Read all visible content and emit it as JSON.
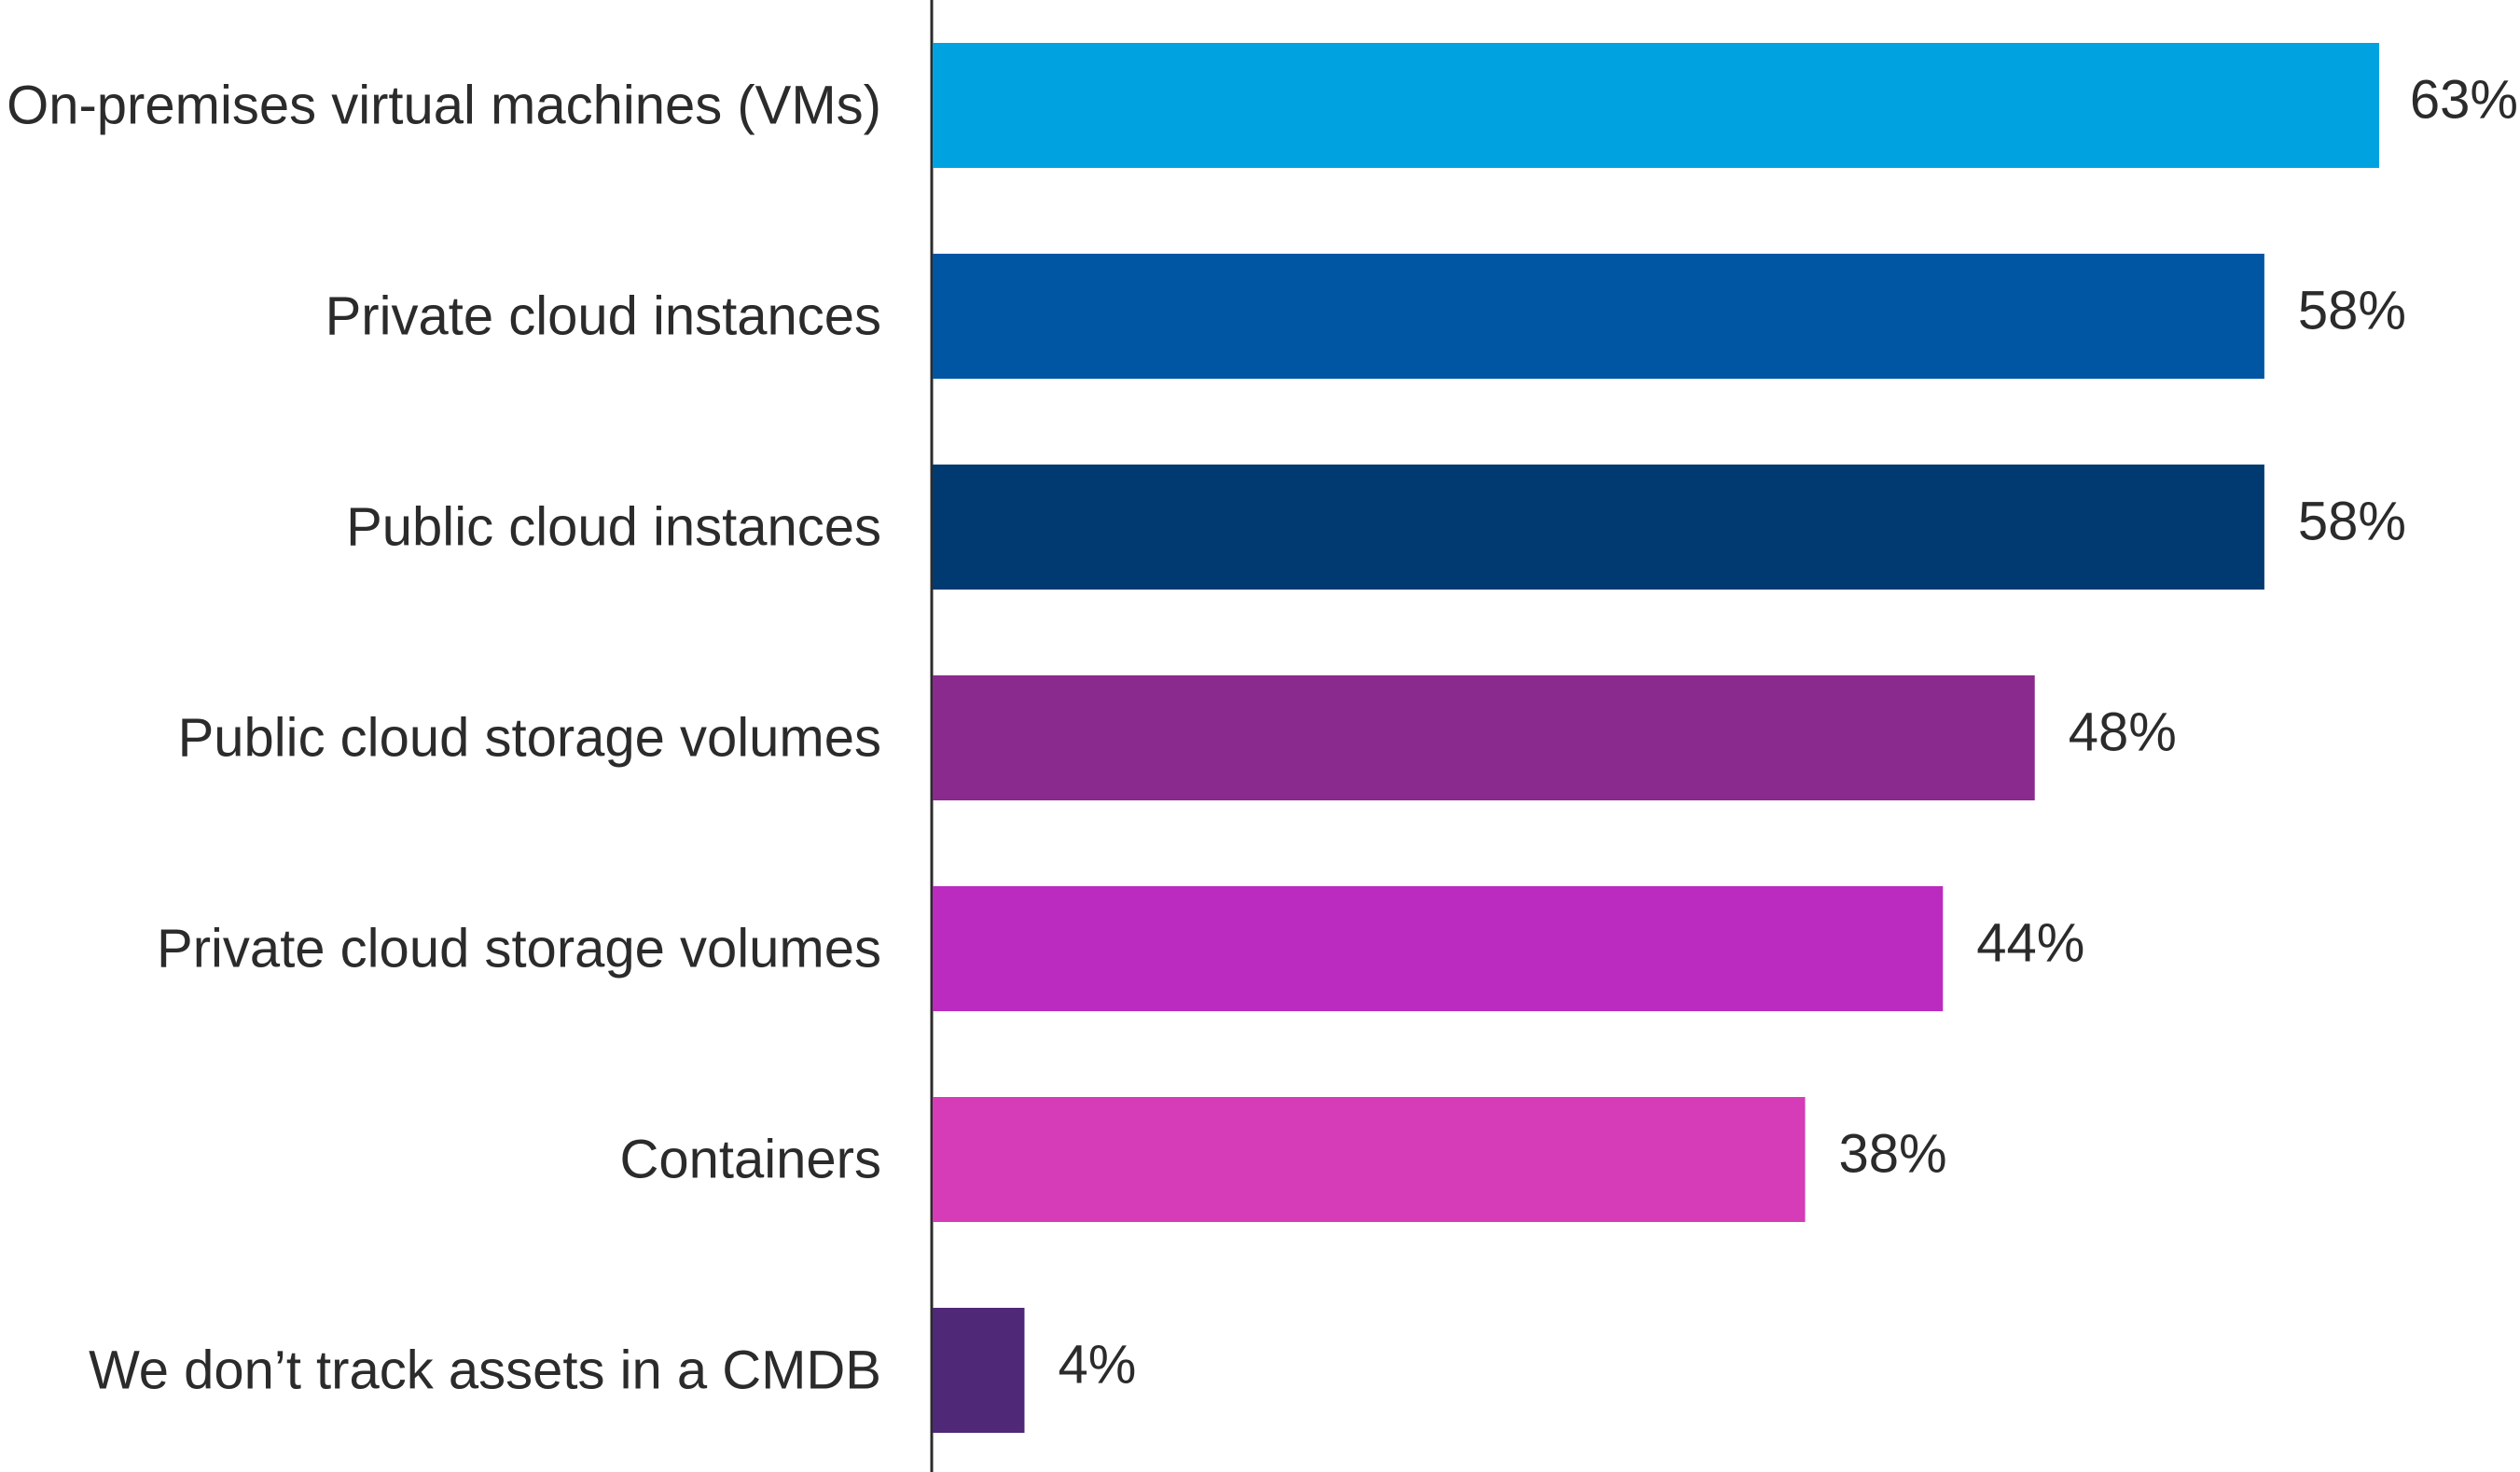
{
  "chart_data": {
    "type": "bar",
    "orientation": "horizontal",
    "title": "",
    "xlabel": "",
    "ylabel": "",
    "xlim": [
      0,
      63
    ],
    "grid": false,
    "legend": "none",
    "categories": [
      "On-premises virtual machines (VMs)",
      "Private cloud instances",
      "Public cloud instances",
      "Public cloud storage volumes",
      "Private cloud storage volumes",
      "Containers",
      "We don’t track assets in a CMDB"
    ],
    "values": [
      63,
      58,
      58,
      48,
      44,
      38,
      4
    ],
    "value_labels": [
      "63%",
      "58%",
      "58%",
      "48%",
      "44%",
      "38%",
      "4%"
    ],
    "colors": [
      "#00a3e0",
      "#0056a3",
      "#003a70",
      "#8b2a8e",
      "#bb2bc0",
      "#d63bb8",
      "#4f2878"
    ]
  }
}
